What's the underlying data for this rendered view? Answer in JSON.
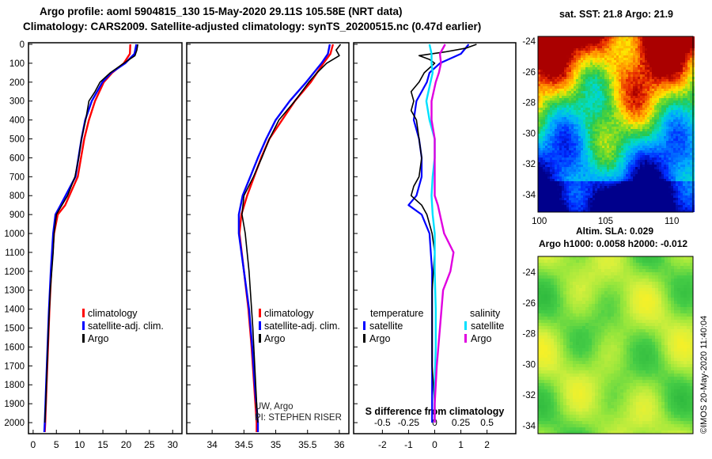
{
  "header": {
    "line1": "Argo profile: aoml 5904815_130 15-May-2020 29.11S 105.58E (NRT data)",
    "line2": "Climatology: CARS2009. Satellite-adjusted climatology: synTS_20200515.nc (0.47d earlier)"
  },
  "colors": {
    "climatology": "#ff0000",
    "satellite": "#0000ff",
    "argo": "#000000",
    "sat_salinity": "#00e0ff",
    "argo_salinity": "#e000e0"
  },
  "chart_data": [
    {
      "type": "line",
      "name": "temperature-profile",
      "xlabel": "",
      "ylabel": "",
      "xlim": [
        -1,
        32
      ],
      "ylim": [
        2050,
        0
      ],
      "x_ticks": [
        "0",
        "5",
        "10",
        "15",
        "20",
        "25",
        "30"
      ],
      "y_ticks": [
        "0",
        "100",
        "200",
        "300",
        "400",
        "500",
        "600",
        "700",
        "800",
        "900",
        "1000",
        "1100",
        "1200",
        "1300",
        "1400",
        "1500",
        "1600",
        "1700",
        "1800",
        "1900",
        "2000"
      ],
      "legend": [
        "climatology",
        "satellite-adj. clim.",
        "Argo"
      ],
      "series": [
        {
          "name": "climatology",
          "depth": [
            0,
            50,
            100,
            150,
            200,
            300,
            400,
            500,
            700,
            850,
            900,
            1000,
            1200,
            1400,
            1600,
            1800,
            2000,
            2050
          ],
          "values": [
            20.9,
            20.8,
            19.5,
            17.0,
            15.2,
            13.3,
            12.0,
            11.0,
            9.6,
            6.9,
            5.3,
            4.5,
            3.9,
            3.5,
            3.2,
            2.9,
            2.6,
            2.5
          ]
        },
        {
          "name": "satellite-adj. clim.",
          "depth": [
            0,
            50,
            100,
            150,
            200,
            300,
            400,
            500,
            700,
            850,
            900,
            1000,
            1200,
            1400,
            1600,
            1800,
            2000,
            2050
          ],
          "values": [
            22.2,
            21.8,
            19.8,
            16.8,
            14.9,
            12.6,
            11.2,
            10.4,
            9.1,
            5.9,
            4.8,
            4.3,
            3.8,
            3.4,
            3.1,
            2.8,
            2.5,
            2.4
          ]
        },
        {
          "name": "Argo",
          "depth": [
            0,
            30,
            60,
            100,
            150,
            200,
            250,
            300,
            400,
            500,
            600,
            700,
            800,
            900,
            1000,
            1100,
            1300,
            1500,
            1700,
            1900,
            2000
          ],
          "values": [
            22.5,
            22.3,
            21.9,
            19.5,
            16.6,
            14.4,
            13.3,
            12.0,
            11.3,
            10.4,
            9.8,
            9.0,
            7.4,
            5.0,
            4.5,
            4.3,
            3.7,
            3.3,
            3.0,
            2.7,
            2.5
          ]
        }
      ]
    },
    {
      "type": "line",
      "name": "salinity-profile",
      "xlim": [
        33.6,
        36.15
      ],
      "ylim": [
        2050,
        0
      ],
      "x_ticks": [
        "34",
        "34.5",
        "35",
        "35.5",
        "36"
      ],
      "legend": [
        "climatology",
        "satellite-adj. clim.",
        "Argo"
      ],
      "annotation": [
        "UW, Argo",
        "PI: STEPHEN RISER"
      ],
      "series": [
        {
          "name": "climatology",
          "depth": [
            0,
            50,
            100,
            200,
            300,
            400,
            500,
            600,
            700,
            800,
            900,
            1000,
            1200,
            1400,
            1600,
            1800,
            2000,
            2050
          ],
          "values": [
            35.9,
            35.86,
            35.75,
            35.55,
            35.3,
            35.1,
            34.9,
            34.77,
            34.66,
            34.55,
            34.46,
            34.43,
            34.5,
            34.57,
            34.62,
            34.66,
            34.7,
            34.7
          ]
        },
        {
          "name": "satellite-adj. clim.",
          "depth": [
            0,
            50,
            100,
            200,
            300,
            400,
            500,
            600,
            700,
            800,
            900,
            1000,
            1200,
            1400,
            1600,
            1800,
            2000,
            2050
          ],
          "values": [
            35.85,
            35.82,
            35.72,
            35.48,
            35.22,
            35.0,
            34.85,
            34.72,
            34.6,
            34.48,
            34.42,
            34.42,
            34.5,
            34.58,
            34.63,
            34.67,
            34.72,
            34.72
          ]
        },
        {
          "name": "Argo",
          "depth": [
            0,
            30,
            60,
            100,
            150,
            200,
            300,
            400,
            500,
            600,
            700,
            800,
            900,
            1000,
            1100,
            1200,
            1300,
            1500,
            1700,
            1900,
            2000
          ],
          "values": [
            36.02,
            35.95,
            36.0,
            35.8,
            35.65,
            35.52,
            35.3,
            35.05,
            34.9,
            34.78,
            34.65,
            34.5,
            34.47,
            34.52,
            34.55,
            34.58,
            34.6,
            34.64,
            34.67,
            34.7,
            34.72
          ]
        }
      ]
    },
    {
      "type": "line",
      "name": "difference-from-climatology",
      "xlim": [
        -3.1,
        3.1
      ],
      "ylim": [
        2050,
        0
      ],
      "x_ticks": [
        "-2",
        "-1",
        "0",
        "1",
        "2"
      ],
      "s_ticks": [
        "-0.5",
        "-0.25",
        "0",
        "0.25",
        "0.5"
      ],
      "xlabel": "S difference from climatology",
      "legend": {
        "temperature_header": "temperature",
        "salinity_header": "salinity",
        "temperature": [
          "satellite",
          "Argo"
        ],
        "salinity": [
          "satellite",
          "Argo"
        ]
      },
      "series": [
        {
          "name": "temperature satellite",
          "depth": [
            0,
            50,
            100,
            150,
            200,
            300,
            400,
            500,
            600,
            700,
            800,
            850,
            900,
            1000,
            1200,
            1400,
            1600,
            1800,
            2000
          ],
          "values": [
            1.3,
            1.0,
            0.2,
            -0.2,
            -0.3,
            -0.7,
            -0.8,
            -0.6,
            -0.5,
            -0.5,
            -0.7,
            -1.0,
            -0.5,
            -0.2,
            -0.1,
            -0.1,
            -0.1,
            -0.1,
            -0.1
          ]
        },
        {
          "name": "temperature Argo",
          "depth": [
            0,
            20,
            40,
            60,
            80,
            100,
            150,
            200,
            250,
            300,
            350,
            400,
            500,
            600,
            700,
            750,
            800,
            850,
            900,
            1000,
            1100,
            1300,
            1500,
            1700,
            1900,
            2000
          ],
          "values": [
            1.6,
            1.2,
            0.4,
            -0.6,
            -0.2,
            0.0,
            -0.4,
            -0.6,
            -0.9,
            -0.8,
            -0.9,
            -0.7,
            -0.6,
            -0.5,
            -0.6,
            -0.8,
            -0.9,
            -0.5,
            -0.3,
            -0.1,
            0.0,
            -0.1,
            -0.1,
            -0.1,
            0.0,
            0.0
          ]
        },
        {
          "name": "salinity satellite",
          "depth": [
            0,
            50,
            100,
            150,
            200,
            300,
            400,
            500,
            600,
            700,
            800,
            900,
            1000,
            1200,
            1400,
            1600,
            1800,
            2000
          ],
          "values": [
            -0.05,
            -0.03,
            -0.03,
            -0.02,
            -0.04,
            -0.08,
            -0.05,
            0.0,
            0.0,
            -0.02,
            -0.03,
            -0.02,
            0.0,
            0.0,
            0.01,
            0.01,
            0.0,
            0.0
          ]
        },
        {
          "name": "salinity Argo",
          "depth": [
            0,
            50,
            100,
            150,
            200,
            300,
            400,
            500,
            600,
            700,
            800,
            850,
            900,
            1000,
            1100,
            1200,
            1300,
            1500,
            1700,
            1900,
            2000
          ],
          "values": [
            0.1,
            0.05,
            0.06,
            0.04,
            0.01,
            -0.03,
            -0.03,
            0.0,
            0.0,
            0.0,
            0.0,
            0.03,
            0.05,
            0.09,
            0.18,
            0.15,
            0.08,
            0.05,
            0.02,
            0.0,
            0.0
          ]
        }
      ]
    },
    {
      "type": "heatmap",
      "name": "sst-map",
      "title": "sat. SST: 21.8 Argo: 21.9",
      "x_ticks": [
        "100",
        "105",
        "110"
      ],
      "y_ticks": [
        "-24",
        "-26",
        "-28",
        "-30",
        "-32",
        "-34"
      ],
      "xlim": [
        99.9,
        111.6
      ],
      "ylim": [
        -35.8,
        -23.3
      ]
    },
    {
      "type": "heatmap",
      "name": "sla-map",
      "title": "Altim. SLA: 0.029",
      "subtitle": "Argo h1000: 0.0058 h2000: -0.012",
      "y_ticks": [
        "-24",
        "-26",
        "-28",
        "-30",
        "-32",
        "-34"
      ],
      "ylim": [
        -35.8,
        -23.3
      ]
    }
  ],
  "footer": {
    "credit": "©IMOS 20-May-2020 11:40:04"
  }
}
